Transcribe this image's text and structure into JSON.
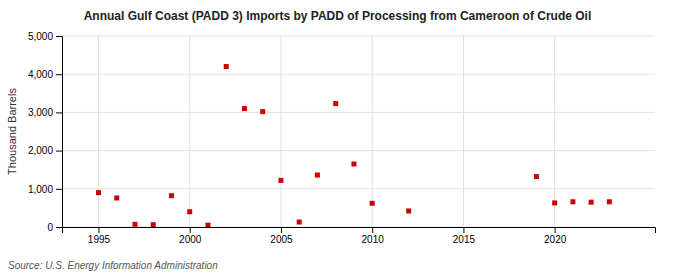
{
  "chart_data": {
    "type": "scatter",
    "title": "Annual Gulf Coast (PADD 3) Imports by PADD of Processing from Cameroon of Crude Oil",
    "y_label": "Thousand Barrels",
    "source": "Source: U.S. Energy Information Administration",
    "x": [
      1995,
      1996,
      1997,
      1998,
      1999,
      2000,
      2001,
      2002,
      2003,
      2004,
      2005,
      2006,
      2007,
      2008,
      2009,
      2010,
      2012,
      2019,
      2020,
      2021,
      2022,
      2023
    ],
    "values": [
      900,
      760,
      70,
      60,
      820,
      400,
      50,
      4200,
      3100,
      3020,
      1220,
      130,
      1360,
      3230,
      1650,
      620,
      420,
      1320,
      630,
      660,
      650,
      660
    ],
    "color": "#cc0000",
    "marker": "square",
    "xlim": [
      1993,
      2025.5
    ],
    "xticks": [
      1995,
      2000,
      2005,
      2010,
      2015,
      2020
    ],
    "ylim": [
      0,
      5000
    ],
    "yticks": [
      0,
      {
        "value": 1000,
        "label": "1,000"
      },
      {
        "value": 2000,
        "label": "2,000"
      },
      {
        "value": 3000,
        "label": "3,000"
      },
      {
        "value": 4000,
        "label": "4,000"
      },
      {
        "value": 5000,
        "label": "5,000"
      }
    ],
    "grid": true
  }
}
